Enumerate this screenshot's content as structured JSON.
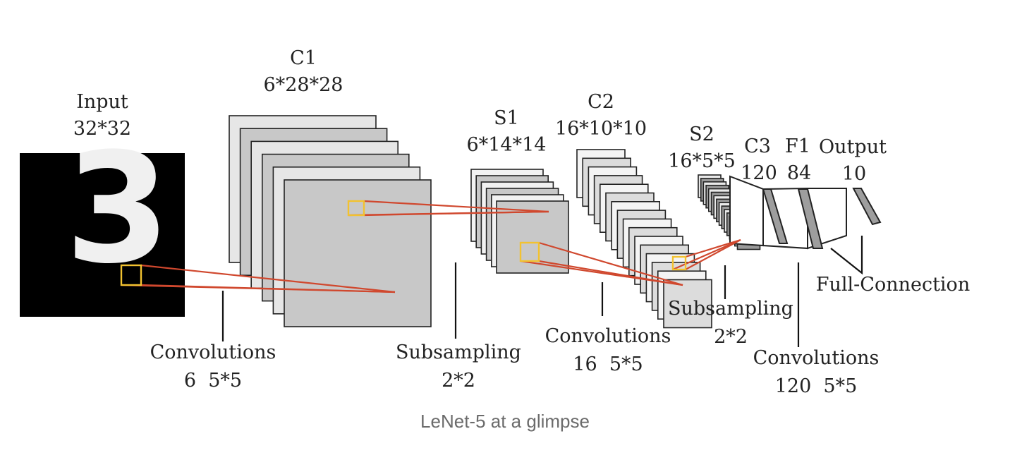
{
  "diagram": {
    "input": {
      "title": "Input",
      "size": "32*32",
      "digit": "3"
    },
    "c1": {
      "title": "C1",
      "size": "6*28*28"
    },
    "s1": {
      "title": "S1",
      "size": "6*14*14"
    },
    "c2": {
      "title": "C2",
      "size": "16*10*10"
    },
    "s2": {
      "title": "S2",
      "size": "16*5*5"
    },
    "c3": {
      "title": "C3",
      "size": "120"
    },
    "f1": {
      "title": "F1",
      "size": "84"
    },
    "output": {
      "title": "Output",
      "size": "10"
    },
    "ops": {
      "conv1": {
        "name": "Convolutions",
        "detail": "6  5*5"
      },
      "sub1": {
        "name": "Subsampling",
        "detail": "2*2"
      },
      "conv2": {
        "name": "Convolutions",
        "detail": "16  5*5"
      },
      "sub2": {
        "name": "Subsampling",
        "detail": "2*2"
      },
      "conv3": {
        "name": "Convolutions",
        "detail": "120  5*5"
      },
      "full": {
        "name": "Full-Connection"
      }
    }
  },
  "caption": "LeNet-5 at a glimpse",
  "colors": {
    "map": "#c8c8c8",
    "map_light": "#e6e6e6",
    "connector": "#d0482e",
    "kernel": "#f2c230",
    "stroke": "#222222"
  }
}
